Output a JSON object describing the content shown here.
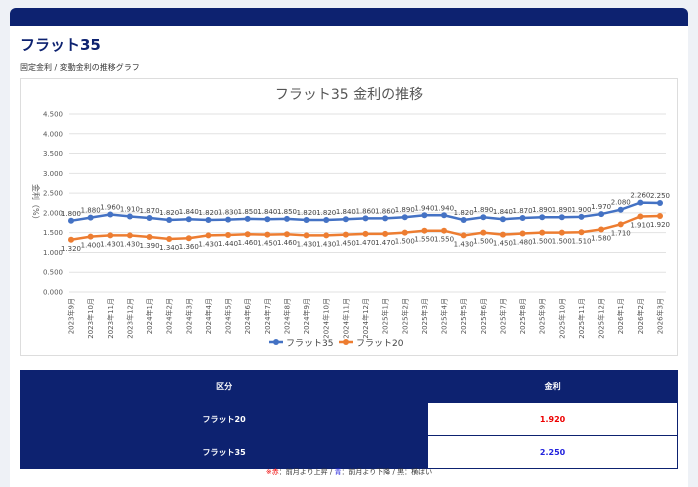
{
  "page": {
    "title": "フラット35",
    "subtitle": "固定金利 / 変動金利の推移グラフ",
    "table": {
      "headers": [
        "区分",
        "金利"
      ],
      "rows": [
        [
          "フラット20",
          "1.920"
        ],
        [
          "フラット35",
          "2.250"
        ]
      ]
    },
    "note": [
      "※赤",
      "：前月より上昇 / ",
      "青",
      "：前月より下降 / ",
      "黒",
      "：横ばい"
    ]
  },
  "chart_data": {
    "type": "line",
    "title": "フラット35 金利の推移",
    "y_label": "金利（%）",
    "categories": [
      "2023年9月",
      "2023年10月",
      "2023年11月",
      "2023年12月",
      "2024年1月",
      "2024年2月",
      "2024年3月",
      "2024年4月",
      "2024年5月",
      "2024年6月",
      "2024年7月",
      "2024年8月",
      "2024年9月",
      "2024年10月",
      "2024年11月",
      "2024年12月",
      "2025年1月",
      "2025年2月",
      "2025年3月",
      "2025年4月",
      "2025年5月",
      "2025年6月",
      "2025年7月",
      "2025年8月",
      "2025年9月",
      "2025年10月",
      "2025年11月",
      "2025年12月",
      "2026年1月",
      "2026年2月",
      "2026年3月"
    ],
    "series": [
      {
        "name": "フラット35",
        "color": "#4472c4",
        "label_pos": "above",
        "values": [
          1.8,
          1.88,
          1.96,
          1.91,
          1.87,
          1.82,
          1.84,
          1.82,
          1.83,
          1.85,
          1.84,
          1.85,
          1.82,
          1.82,
          1.84,
          1.86,
          1.86,
          1.89,
          1.94,
          1.94,
          1.82,
          1.89,
          1.84,
          1.87,
          1.89,
          1.89,
          1.9,
          1.97,
          2.08,
          2.26,
          2.25
        ],
        "value_labels": [
          "1.800",
          "1.880",
          "1.960",
          "1.910",
          "1.870",
          "1.820",
          "1.840",
          "1.820",
          "1.830",
          "1.850",
          "1.840",
          "1.850",
          "1.820",
          "1.820",
          "1.840",
          "1.860",
          "1.860",
          "1.890",
          "1.940",
          "1.940",
          "1.820",
          "1.890",
          "1.840",
          "1.870",
          "1.890",
          "1.890",
          "1.900",
          "1.970",
          "2.080",
          "2.260",
          "2.250"
        ]
      },
      {
        "name": "フラット20",
        "color": "#ed7d31",
        "label_pos": "below",
        "values": [
          1.32,
          1.4,
          1.43,
          1.43,
          1.39,
          1.34,
          1.36,
          1.43,
          1.44,
          1.46,
          1.45,
          1.46,
          1.43,
          1.43,
          1.45,
          1.47,
          1.47,
          1.5,
          1.55,
          1.55,
          1.43,
          1.5,
          1.45,
          1.48,
          1.5,
          1.5,
          1.51,
          1.58,
          1.71,
          1.91,
          1.92
        ],
        "value_labels": [
          "1.320",
          "1.400",
          "1.430",
          "1.430",
          "1.390",
          "1.340",
          "1.360",
          "1.430",
          "1.440",
          "1.460",
          "1.450",
          "1.460",
          "1.430",
          "1.430",
          "1.450",
          "1.470",
          "1.470",
          "1.500",
          "1.550",
          "1.550",
          "1.430",
          "1.500",
          "1.450",
          "1.480",
          "1.500",
          "1.500",
          "1.510",
          "1.580",
          "1.710",
          "1.910",
          "1.920"
        ]
      }
    ],
    "ylim": [
      0,
      4.5
    ],
    "yticks": [
      {
        "value": 0,
        "label": "0.000"
      },
      {
        "value": 0.5,
        "label": "0.500"
      },
      {
        "value": 1,
        "label": "1.000"
      },
      {
        "value": 1.5,
        "label": "1.500"
      },
      {
        "value": 2,
        "label": "2.000"
      },
      {
        "value": 2.5,
        "label": "2.500"
      },
      {
        "value": 3,
        "label": "3.000"
      },
      {
        "value": 3.5,
        "label": "3.500"
      },
      {
        "value": 4,
        "label": "4.000"
      },
      {
        "value": 4.5,
        "label": "4.500"
      }
    ],
    "grid": true,
    "legend": "bottom"
  }
}
